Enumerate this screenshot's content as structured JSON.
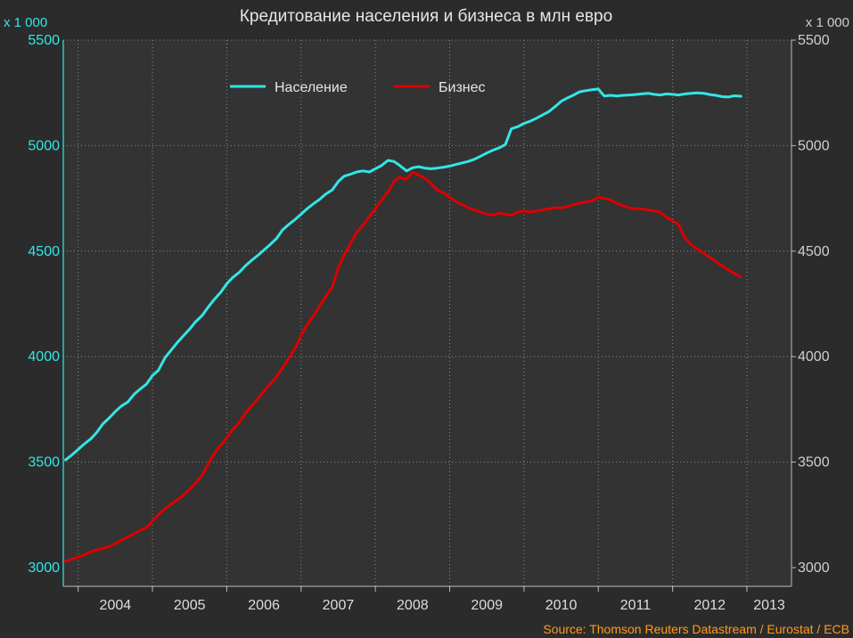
{
  "header": {
    "title": "Кредитование населения и бизнеса в млн евро"
  },
  "axes": {
    "left_unit": "x 1 000",
    "right_unit": "x 1 000"
  },
  "source": "Source: Thomson Reuters Datastream / Eurostat / ECB",
  "colors": {
    "background": "#2b2b2b",
    "plot_background": "#333333",
    "households": "#33e6e6",
    "business": "#dd0000",
    "grid": "#8a8a8a",
    "source": "#ff9b1a"
  },
  "chart_data": {
    "type": "line",
    "title": "Кредитование населения и бизнеса в млн евро",
    "x_unit": "year",
    "xlim": [
      2003.8,
      2013.6
    ],
    "x_tick_labels": [
      "2004",
      "2005",
      "2006",
      "2007",
      "2008",
      "2009",
      "2010",
      "2011",
      "2012",
      "2013"
    ],
    "ylim": [
      3000,
      5500
    ],
    "y_ticks": [
      3000,
      3500,
      4000,
      4500,
      5000,
      5500
    ],
    "y_tick_labels": [
      "3000",
      "3500",
      "4000",
      "4500",
      "5000",
      "5500"
    ],
    "ylabel_left": "x 1 000",
    "ylabel_right": "x 1 000",
    "grid": true,
    "legend_position": "top-left",
    "series": [
      {
        "name": "Население",
        "color": "#33e6e6",
        "points": [
          [
            2003.83,
            3510
          ],
          [
            2003.92,
            3535
          ],
          [
            2004.0,
            3560
          ],
          [
            2004.08,
            3585
          ],
          [
            2004.17,
            3610
          ],
          [
            2004.25,
            3640
          ],
          [
            2004.33,
            3680
          ],
          [
            2004.42,
            3710
          ],
          [
            2004.5,
            3740
          ],
          [
            2004.58,
            3765
          ],
          [
            2004.67,
            3785
          ],
          [
            2004.75,
            3820
          ],
          [
            2004.83,
            3845
          ],
          [
            2004.92,
            3870
          ],
          [
            2005.0,
            3910
          ],
          [
            2005.08,
            3935
          ],
          [
            2005.17,
            3995
          ],
          [
            2005.25,
            4030
          ],
          [
            2005.33,
            4065
          ],
          [
            2005.42,
            4100
          ],
          [
            2005.5,
            4130
          ],
          [
            2005.58,
            4165
          ],
          [
            2005.67,
            4195
          ],
          [
            2005.75,
            4235
          ],
          [
            2005.83,
            4270
          ],
          [
            2005.92,
            4305
          ],
          [
            2006.0,
            4345
          ],
          [
            2006.08,
            4375
          ],
          [
            2006.17,
            4400
          ],
          [
            2006.25,
            4430
          ],
          [
            2006.33,
            4455
          ],
          [
            2006.42,
            4480
          ],
          [
            2006.5,
            4505
          ],
          [
            2006.58,
            4530
          ],
          [
            2006.67,
            4560
          ],
          [
            2006.75,
            4600
          ],
          [
            2006.83,
            4625
          ],
          [
            2006.92,
            4650
          ],
          [
            2007.0,
            4675
          ],
          [
            2007.08,
            4700
          ],
          [
            2007.17,
            4725
          ],
          [
            2007.25,
            4745
          ],
          [
            2007.33,
            4770
          ],
          [
            2007.42,
            4790
          ],
          [
            2007.5,
            4830
          ],
          [
            2007.58,
            4855
          ],
          [
            2007.67,
            4865
          ],
          [
            2007.75,
            4875
          ],
          [
            2007.83,
            4880
          ],
          [
            2007.92,
            4875
          ],
          [
            2008.0,
            4890
          ],
          [
            2008.08,
            4905
          ],
          [
            2008.17,
            4930
          ],
          [
            2008.25,
            4925
          ],
          [
            2008.33,
            4905
          ],
          [
            2008.42,
            4880
          ],
          [
            2008.5,
            4895
          ],
          [
            2008.58,
            4900
          ],
          [
            2008.67,
            4893
          ],
          [
            2008.75,
            4890
          ],
          [
            2008.83,
            4893
          ],
          [
            2008.92,
            4898
          ],
          [
            2009.0,
            4903
          ],
          [
            2009.08,
            4910
          ],
          [
            2009.17,
            4918
          ],
          [
            2009.25,
            4925
          ],
          [
            2009.33,
            4935
          ],
          [
            2009.42,
            4950
          ],
          [
            2009.5,
            4965
          ],
          [
            2009.58,
            4978
          ],
          [
            2009.67,
            4990
          ],
          [
            2009.75,
            5005
          ],
          [
            2009.83,
            5080
          ],
          [
            2009.92,
            5090
          ],
          [
            2010.0,
            5105
          ],
          [
            2010.08,
            5115
          ],
          [
            2010.17,
            5130
          ],
          [
            2010.25,
            5145
          ],
          [
            2010.33,
            5160
          ],
          [
            2010.42,
            5185
          ],
          [
            2010.5,
            5210
          ],
          [
            2010.58,
            5225
          ],
          [
            2010.67,
            5240
          ],
          [
            2010.75,
            5255
          ],
          [
            2010.83,
            5260
          ],
          [
            2010.92,
            5265
          ],
          [
            2011.0,
            5268
          ],
          [
            2011.08,
            5235
          ],
          [
            2011.17,
            5238
          ],
          [
            2011.25,
            5235
          ],
          [
            2011.33,
            5238
          ],
          [
            2011.42,
            5240
          ],
          [
            2011.5,
            5242
          ],
          [
            2011.58,
            5245
          ],
          [
            2011.67,
            5248
          ],
          [
            2011.75,
            5243
          ],
          [
            2011.83,
            5240
          ],
          [
            2011.92,
            5245
          ],
          [
            2012.0,
            5243
          ],
          [
            2012.08,
            5240
          ],
          [
            2012.17,
            5245
          ],
          [
            2012.25,
            5248
          ],
          [
            2012.33,
            5250
          ],
          [
            2012.42,
            5248
          ],
          [
            2012.5,
            5242
          ],
          [
            2012.58,
            5238
          ],
          [
            2012.67,
            5232
          ],
          [
            2012.75,
            5230
          ],
          [
            2012.83,
            5236
          ],
          [
            2012.92,
            5234
          ]
        ]
      },
      {
        "name": "Бизнес",
        "color": "#dd0000",
        "points": [
          [
            2003.83,
            3030
          ],
          [
            2003.92,
            3040
          ],
          [
            2004.0,
            3050
          ],
          [
            2004.08,
            3060
          ],
          [
            2004.17,
            3075
          ],
          [
            2004.25,
            3085
          ],
          [
            2004.33,
            3090
          ],
          [
            2004.42,
            3100
          ],
          [
            2004.5,
            3115
          ],
          [
            2004.58,
            3130
          ],
          [
            2004.67,
            3145
          ],
          [
            2004.75,
            3160
          ],
          [
            2004.83,
            3175
          ],
          [
            2004.92,
            3190
          ],
          [
            2005.0,
            3220
          ],
          [
            2005.08,
            3250
          ],
          [
            2005.17,
            3280
          ],
          [
            2005.25,
            3300
          ],
          [
            2005.33,
            3320
          ],
          [
            2005.42,
            3345
          ],
          [
            2005.5,
            3370
          ],
          [
            2005.58,
            3400
          ],
          [
            2005.67,
            3440
          ],
          [
            2005.75,
            3490
          ],
          [
            2005.83,
            3540
          ],
          [
            2005.92,
            3580
          ],
          [
            2006.0,
            3615
          ],
          [
            2006.08,
            3655
          ],
          [
            2006.17,
            3690
          ],
          [
            2006.25,
            3730
          ],
          [
            2006.33,
            3765
          ],
          [
            2006.42,
            3800
          ],
          [
            2006.5,
            3835
          ],
          [
            2006.58,
            3870
          ],
          [
            2006.67,
            3905
          ],
          [
            2006.75,
            3945
          ],
          [
            2006.83,
            3990
          ],
          [
            2006.92,
            4040
          ],
          [
            2007.0,
            4100
          ],
          [
            2007.08,
            4150
          ],
          [
            2007.17,
            4195
          ],
          [
            2007.25,
            4240
          ],
          [
            2007.33,
            4285
          ],
          [
            2007.42,
            4330
          ],
          [
            2007.5,
            4420
          ],
          [
            2007.58,
            4480
          ],
          [
            2007.67,
            4540
          ],
          [
            2007.75,
            4590
          ],
          [
            2007.83,
            4620
          ],
          [
            2007.92,
            4665
          ],
          [
            2008.0,
            4700
          ],
          [
            2008.08,
            4740
          ],
          [
            2008.17,
            4780
          ],
          [
            2008.25,
            4830
          ],
          [
            2008.33,
            4850
          ],
          [
            2008.42,
            4840
          ],
          [
            2008.5,
            4875
          ],
          [
            2008.58,
            4860
          ],
          [
            2008.67,
            4845
          ],
          [
            2008.75,
            4820
          ],
          [
            2008.83,
            4790
          ],
          [
            2008.92,
            4775
          ],
          [
            2009.0,
            4755
          ],
          [
            2009.08,
            4735
          ],
          [
            2009.17,
            4720
          ],
          [
            2009.25,
            4705
          ],
          [
            2009.33,
            4695
          ],
          [
            2009.42,
            4685
          ],
          [
            2009.5,
            4675
          ],
          [
            2009.58,
            4670
          ],
          [
            2009.67,
            4680
          ],
          [
            2009.75,
            4675
          ],
          [
            2009.83,
            4670
          ],
          [
            2009.92,
            4685
          ],
          [
            2010.0,
            4690
          ],
          [
            2010.08,
            4685
          ],
          [
            2010.17,
            4690
          ],
          [
            2010.25,
            4695
          ],
          [
            2010.33,
            4700
          ],
          [
            2010.42,
            4705
          ],
          [
            2010.5,
            4705
          ],
          [
            2010.58,
            4710
          ],
          [
            2010.67,
            4720
          ],
          [
            2010.75,
            4728
          ],
          [
            2010.83,
            4733
          ],
          [
            2010.92,
            4740
          ],
          [
            2011.0,
            4755
          ],
          [
            2011.08,
            4750
          ],
          [
            2011.17,
            4742
          ],
          [
            2011.25,
            4725
          ],
          [
            2011.33,
            4715
          ],
          [
            2011.42,
            4705
          ],
          [
            2011.5,
            4700
          ],
          [
            2011.58,
            4700
          ],
          [
            2011.67,
            4695
          ],
          [
            2011.75,
            4690
          ],
          [
            2011.83,
            4685
          ],
          [
            2011.92,
            4660
          ],
          [
            2012.0,
            4645
          ],
          [
            2012.08,
            4625
          ],
          [
            2012.17,
            4560
          ],
          [
            2012.25,
            4530
          ],
          [
            2012.33,
            4510
          ],
          [
            2012.42,
            4490
          ],
          [
            2012.5,
            4470
          ],
          [
            2012.58,
            4450
          ],
          [
            2012.67,
            4430
          ],
          [
            2012.75,
            4410
          ],
          [
            2012.83,
            4395
          ],
          [
            2012.92,
            4378
          ]
        ]
      }
    ]
  }
}
